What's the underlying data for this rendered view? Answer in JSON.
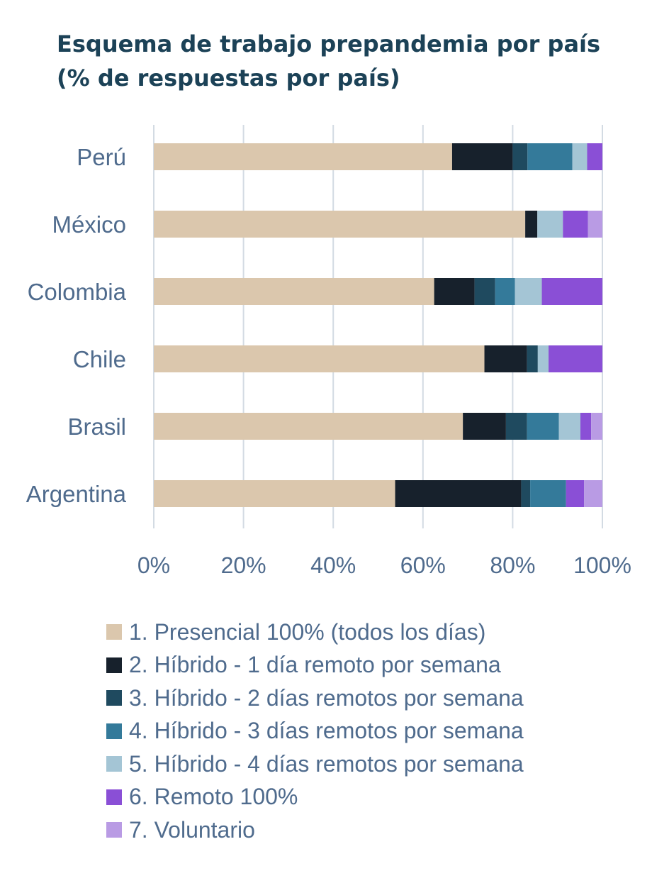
{
  "chart_data": {
    "type": "bar",
    "orientation": "horizontal",
    "stacked": true,
    "title": "Esquema de trabajo prepandemia por país",
    "subtitle": "(% de respuestas por país)",
    "categories": [
      "Perú",
      "México",
      "Colombia",
      "Chile",
      "Brasil",
      "Argentina"
    ],
    "x_ticks": [
      "0%",
      "20%",
      "40%",
      "60%",
      "80%",
      "100%"
    ],
    "xlim": [
      0,
      100
    ],
    "grid": true,
    "legend_position": "bottom",
    "series": [
      {
        "name": "1. Presencial 100% (todos los días)",
        "color": "#dbc7ad",
        "values": [
          66.5,
          82.8,
          62.5,
          73.7,
          68.9,
          53.8
        ]
      },
      {
        "name": "2. Híbrido - 1 día remoto por semana",
        "color": "#17212c",
        "values": [
          13.5,
          2.7,
          9.0,
          9.5,
          9.6,
          28.1
        ]
      },
      {
        "name": "3. Híbrido - 2 días remotos por semana",
        "color": "#1f4a5f",
        "values": [
          3.3,
          0.0,
          4.6,
          2.4,
          4.7,
          2.0
        ]
      },
      {
        "name": "4. Híbrido - 3 días remotos por semana",
        "color": "#347a9a",
        "values": [
          10.0,
          0.0,
          4.4,
          0.0,
          7.1,
          8.0
        ]
      },
      {
        "name": "5. Híbrido - 4 días remotos por semana",
        "color": "#a4c5d5",
        "values": [
          3.3,
          5.7,
          6.0,
          2.4,
          4.8,
          0.0
        ]
      },
      {
        "name": "6. Remoto 100%",
        "color": "#8a4fd6",
        "values": [
          3.4,
          5.6,
          13.5,
          12.0,
          2.4,
          4.0
        ]
      },
      {
        "name": "7. Voluntario",
        "color": "#b99be4",
        "values": [
          0.0,
          3.2,
          0.0,
          0.0,
          2.5,
          4.1
        ]
      }
    ]
  }
}
